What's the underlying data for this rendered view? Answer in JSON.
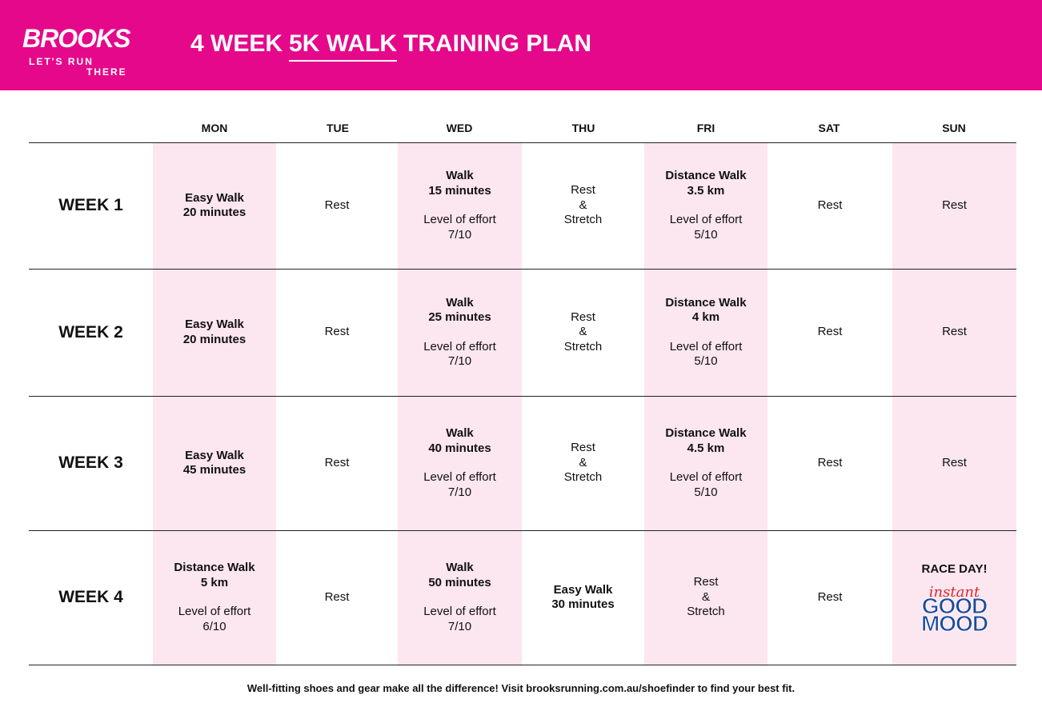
{
  "header": {
    "logo": "BROOKS",
    "tagline": [
      "LET'S RUN",
      "THERE"
    ],
    "title_parts": [
      "4 WEEK",
      "5K WALK",
      "TRAINING PLAN"
    ]
  },
  "table": {
    "days": [
      "MON",
      "TUE",
      "WED",
      "THU",
      "FRI",
      "SAT",
      "SUN"
    ],
    "rows": [
      {
        "week": "WEEK 1",
        "cells": [
          {
            "strong": [
              "Easy Walk",
              "20 minutes"
            ]
          },
          {
            "text": [
              "Rest"
            ]
          },
          {
            "strong": [
              "Walk",
              "15 minutes"
            ],
            "text": [
              "Level of effort",
              "7/10"
            ]
          },
          {
            "text": [
              "Rest",
              "&",
              "Stretch"
            ]
          },
          {
            "strong": [
              "Distance Walk",
              "3.5 km"
            ],
            "text": [
              "Level of effort",
              "5/10"
            ]
          },
          {
            "text": [
              "Rest"
            ]
          },
          {
            "text": [
              "Rest"
            ]
          }
        ]
      },
      {
        "week": "WEEK 2",
        "cells": [
          {
            "strong": [
              "Easy Walk",
              "20 minutes"
            ]
          },
          {
            "text": [
              "Rest"
            ]
          },
          {
            "strong": [
              "Walk",
              "25 minutes"
            ],
            "text": [
              "Level of effort",
              "7/10"
            ]
          },
          {
            "text": [
              "Rest",
              "&",
              "Stretch"
            ]
          },
          {
            "strong": [
              "Distance Walk",
              "4 km"
            ],
            "text": [
              "Level of effort",
              "5/10"
            ]
          },
          {
            "text": [
              "Rest"
            ]
          },
          {
            "text": [
              "Rest"
            ]
          }
        ]
      },
      {
        "week": "WEEK 3",
        "cells": [
          {
            "strong": [
              "Easy Walk",
              "45 minutes"
            ]
          },
          {
            "text": [
              "Rest"
            ]
          },
          {
            "strong": [
              "Walk",
              "40 minutes"
            ],
            "text": [
              "Level of effort",
              "7/10"
            ]
          },
          {
            "text": [
              "Rest",
              "&",
              "Stretch"
            ]
          },
          {
            "strong": [
              "Distance Walk",
              "4.5 km"
            ],
            "text": [
              "Level of effort",
              "5/10"
            ]
          },
          {
            "text": [
              "Rest"
            ]
          },
          {
            "text": [
              "Rest"
            ]
          }
        ]
      },
      {
        "week": "WEEK 4",
        "cells": [
          {
            "strong": [
              "Distance Walk",
              "5 km"
            ],
            "text": [
              "Level of effort",
              "6/10"
            ]
          },
          {
            "text": [
              "Rest"
            ]
          },
          {
            "strong": [
              "Walk",
              "50 minutes"
            ],
            "text": [
              "Level of effort",
              "7/10"
            ]
          },
          {
            "strong": [
              "Easy Walk",
              "30 minutes"
            ]
          },
          {
            "text": [
              "Rest",
              "&",
              "Stretch"
            ]
          },
          {
            "text": [
              "Rest"
            ]
          },
          {
            "strong": [
              "RACE DAY!"
            ],
            "badge": [
              "instant",
              "GOOD",
              "MOOD"
            ]
          }
        ]
      }
    ]
  },
  "footer": "Well-fitting shoes and gear make all the difference! Visit brooksrunning.com.au/shoefinder to find your best fit."
}
